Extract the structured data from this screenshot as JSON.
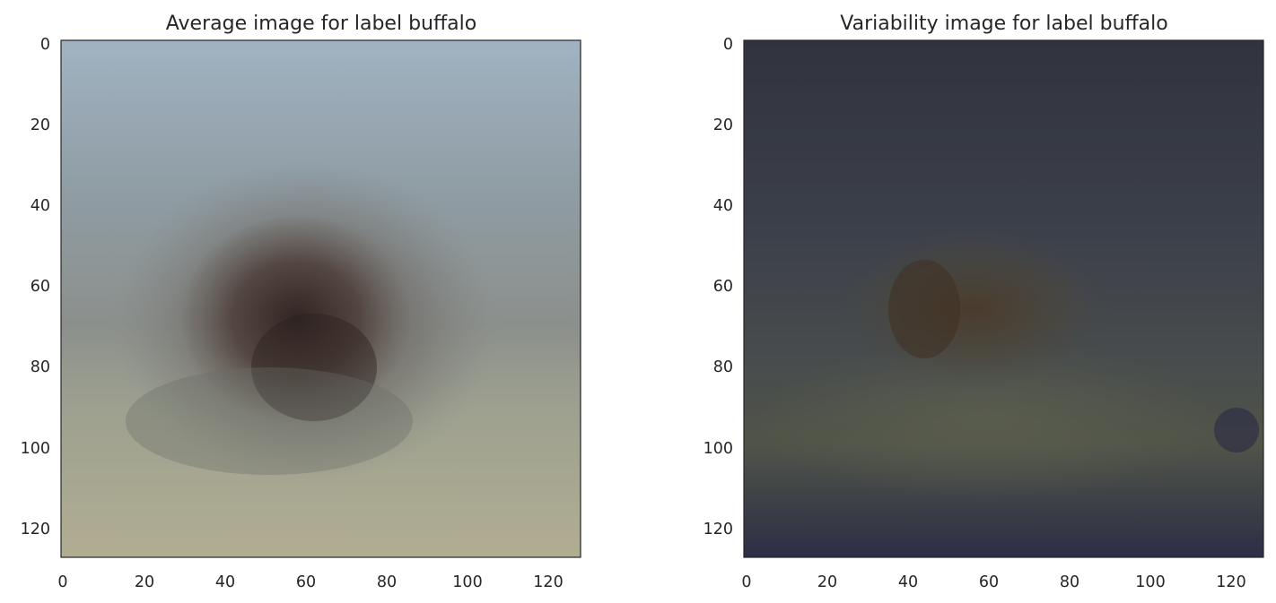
{
  "chart_data": [
    {
      "type": "heatmap",
      "title": "Average image for label buffalo",
      "image_size": [
        128,
        128
      ],
      "xlim": [
        0,
        127
      ],
      "ylim": [
        127,
        0
      ],
      "x_ticks": [
        "0",
        "20",
        "40",
        "60",
        "80",
        "100",
        "120"
      ],
      "y_ticks": [
        "0",
        "20",
        "40",
        "60",
        "80",
        "100",
        "120"
      ],
      "grid": false,
      "palette": {
        "sky_top": "#9fb1bf",
        "sky_mid": "#8d9a9c",
        "ground": "#a7a998",
        "ground_bottom": "#b0ad93",
        "blob_outer": "#6f6862",
        "blob_core": "#3a2b27"
      }
    },
    {
      "type": "heatmap",
      "title": "Variability image for label buffalo",
      "image_size": [
        128,
        128
      ],
      "xlim": [
        0,
        127
      ],
      "ylim": [
        127,
        0
      ],
      "x_ticks": [
        "0",
        "20",
        "40",
        "60",
        "80",
        "100",
        "120"
      ],
      "y_ticks": [
        "0",
        "20",
        "40",
        "60",
        "80",
        "100",
        "120"
      ],
      "grid": false,
      "palette": {
        "top": "#333641",
        "mid": "#454a50",
        "lower_band": "#55594f",
        "bottom": "#2e3046",
        "blob": "#4a3c2c"
      }
    }
  ]
}
